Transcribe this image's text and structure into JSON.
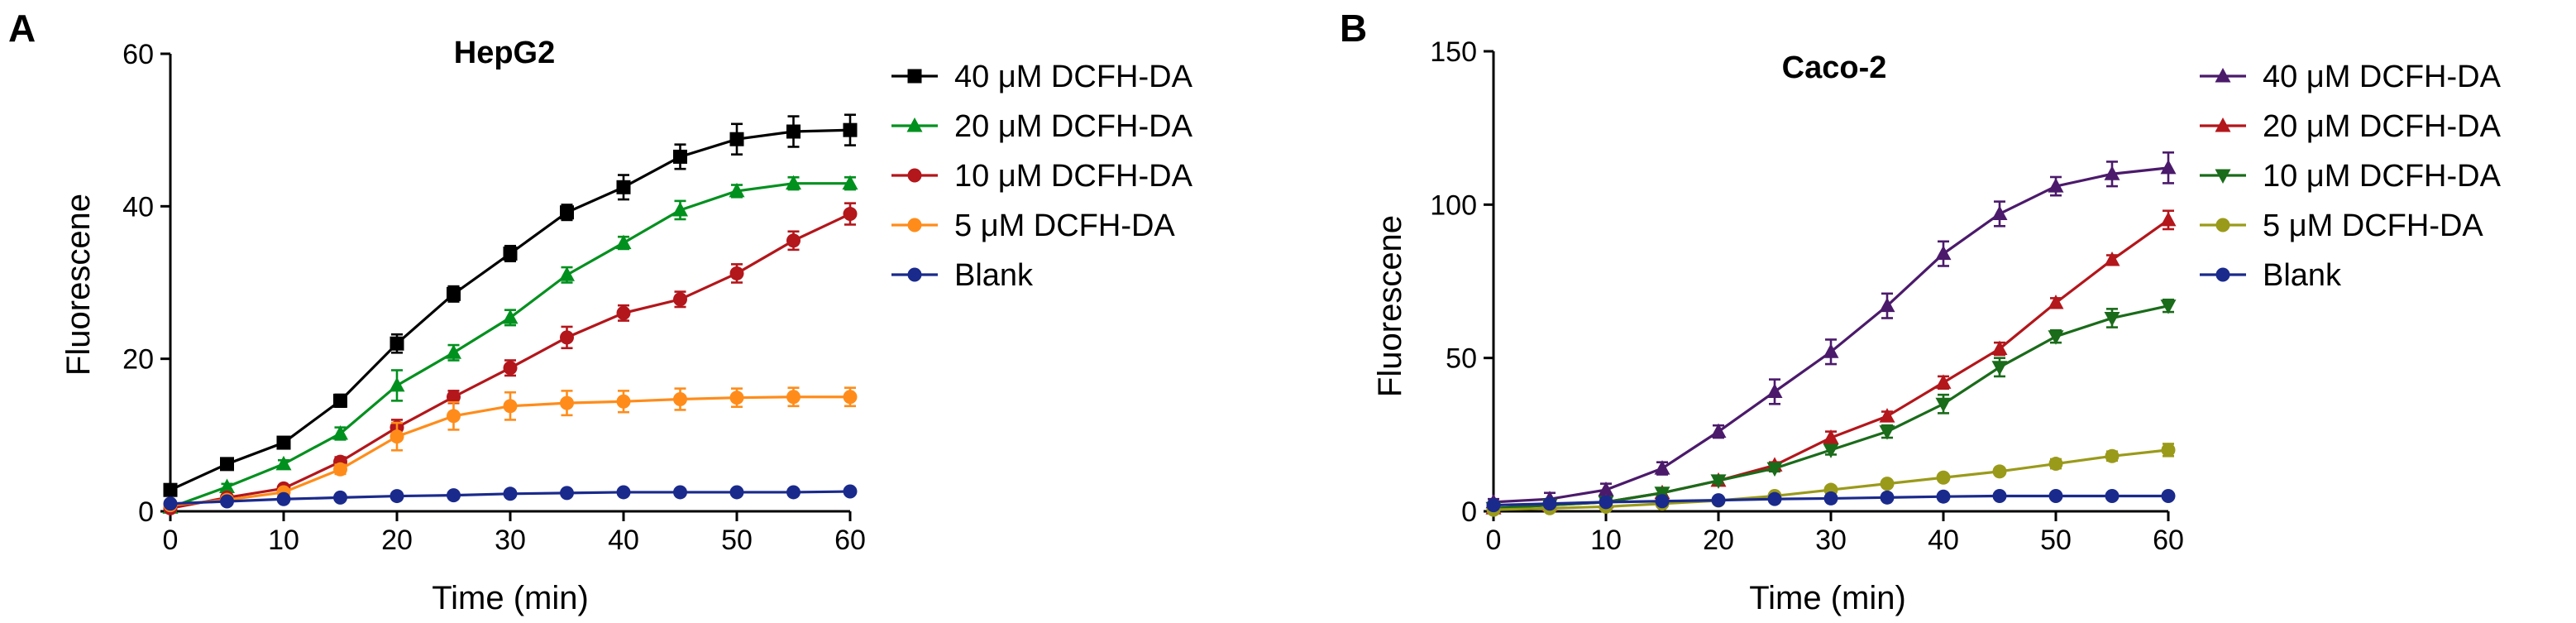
{
  "chart_data": [
    {
      "panel": "A",
      "type": "line",
      "title": "HepG2",
      "xlabel": "Time (min)",
      "ylabel": "Fluorescene",
      "xlim": [
        0,
        60
      ],
      "ylim": [
        0,
        60
      ],
      "xticks": [
        0,
        10,
        20,
        30,
        40,
        50,
        60
      ],
      "yticks": [
        0,
        20,
        40,
        60
      ],
      "legend_position": "right",
      "x": [
        0,
        5,
        10,
        15,
        20,
        25,
        30,
        35,
        40,
        45,
        50,
        55,
        60
      ],
      "series": [
        {
          "name": "40 μM  DCFH-DA",
          "color": "#000000",
          "marker": "square",
          "values": [
            2.8,
            6.2,
            9.0,
            14.5,
            22.0,
            28.5,
            33.8,
            39.2,
            42.5,
            46.5,
            48.8,
            49.8,
            50.0
          ],
          "errors": [
            0.4,
            0.5,
            0.6,
            0.8,
            1.2,
            1.0,
            1.0,
            1.0,
            1.6,
            1.6,
            2.0,
            2.0,
            2.0
          ]
        },
        {
          "name": "20 μM DCFH-DA",
          "color": "#00901e",
          "marker": "triangle-up",
          "values": [
            0.5,
            3.2,
            6.2,
            10.2,
            16.5,
            20.8,
            25.4,
            31.0,
            35.2,
            39.5,
            42.0,
            43.0,
            43.0
          ],
          "errors": [
            0.3,
            0.4,
            0.5,
            0.8,
            2.0,
            1.0,
            1.0,
            1.0,
            0.8,
            1.2,
            0.8,
            0.8,
            0.8
          ]
        },
        {
          "name": "10 μM  DCFH-DA",
          "color": "#b3161b",
          "marker": "circle",
          "values": [
            0.4,
            1.8,
            3.0,
            6.5,
            11.0,
            15.0,
            18.8,
            22.8,
            26.0,
            27.8,
            31.2,
            35.5,
            39.0
          ],
          "errors": [
            0.3,
            0.3,
            0.4,
            0.6,
            1.0,
            0.8,
            1.0,
            1.4,
            1.0,
            1.0,
            1.2,
            1.2,
            1.4
          ]
        },
        {
          "name": "5 μM  DCFH-DA",
          "color": "#ff8c1a",
          "marker": "circle",
          "values": [
            0.8,
            1.5,
            2.5,
            5.5,
            9.8,
            12.5,
            13.8,
            14.2,
            14.4,
            14.7,
            14.9,
            15.0,
            15.0
          ],
          "errors": [
            0.3,
            0.3,
            0.4,
            0.6,
            1.8,
            1.8,
            1.8,
            1.6,
            1.4,
            1.4,
            1.2,
            1.2,
            1.2
          ]
        },
        {
          "name": "Blank",
          "color": "#1a2a8c",
          "marker": "circle",
          "values": [
            1.0,
            1.3,
            1.6,
            1.8,
            2.0,
            2.1,
            2.3,
            2.4,
            2.5,
            2.5,
            2.5,
            2.5,
            2.6
          ],
          "errors": [
            0,
            0,
            0,
            0,
            0,
            0,
            0,
            0,
            0,
            0,
            0,
            0,
            0
          ]
        }
      ]
    },
    {
      "panel": "B",
      "type": "line",
      "title": "Caco-2",
      "xlabel": "Time (min)",
      "ylabel": "Fluorescene",
      "xlim": [
        0,
        60
      ],
      "ylim": [
        0,
        150
      ],
      "xticks": [
        0,
        10,
        20,
        30,
        40,
        50,
        60
      ],
      "yticks": [
        0,
        50,
        100,
        150
      ],
      "legend_position": "right",
      "x": [
        0,
        5,
        10,
        15,
        20,
        25,
        30,
        35,
        40,
        45,
        50,
        55,
        60
      ],
      "series": [
        {
          "name": "40 μM  DCFH-DA",
          "color": "#4b1a6b",
          "marker": "triangle-up",
          "values": [
            3,
            4,
            7,
            14,
            26,
            39,
            52,
            67,
            84,
            97,
            106,
            110,
            112
          ],
          "errors": [
            1,
            2,
            2,
            2,
            2,
            4,
            4,
            4,
            4,
            4,
            3,
            4,
            5
          ]
        },
        {
          "name": "20 μM  DCFH-DA",
          "color": "#b3161b",
          "marker": "triangle-up",
          "values": [
            1,
            2,
            3,
            6,
            10,
            15,
            24,
            31,
            42,
            53,
            68,
            82,
            95
          ],
          "errors": [
            0.5,
            0.5,
            1,
            1,
            1,
            1,
            2,
            1.5,
            2,
            2,
            1.5,
            1.5,
            3
          ]
        },
        {
          "name": "10 μM  DCFH-DA",
          "color": "#1a6b1a",
          "marker": "triangle-down",
          "values": [
            1,
            2,
            3,
            6,
            10,
            14,
            20,
            26,
            35,
            47,
            57,
            63,
            67
          ],
          "errors": [
            0.5,
            0.5,
            1,
            1,
            1,
            1,
            1.5,
            2,
            3,
            3,
            2,
            3,
            2
          ]
        },
        {
          "name": "5 μM  DCFH-DA",
          "color": "#9a9a1a",
          "marker": "circle",
          "values": [
            0.5,
            1,
            1.5,
            2.5,
            3.5,
            5,
            7,
            9,
            11,
            13,
            15.5,
            18,
            20
          ],
          "errors": [
            0.3,
            0.3,
            0.3,
            0.5,
            0.5,
            0.5,
            1,
            1,
            1,
            1,
            1.5,
            1.5,
            2
          ]
        },
        {
          "name": "Blank",
          "color": "#1a2a8c",
          "marker": "circle",
          "values": [
            2,
            2.5,
            3,
            3.3,
            3.6,
            4,
            4.2,
            4.5,
            4.8,
            5,
            5,
            5,
            5
          ],
          "errors": [
            0,
            0,
            0,
            0,
            0,
            0,
            0,
            0,
            0,
            0,
            0,
            0,
            0
          ]
        }
      ]
    }
  ]
}
